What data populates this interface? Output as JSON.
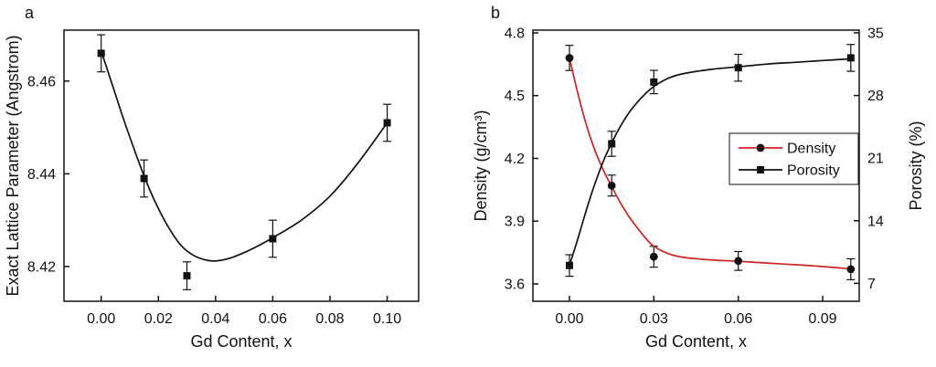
{
  "figure": {
    "background": "#ffffff",
    "ink_color": "#111111"
  },
  "chart_data": [
    {
      "type": "line",
      "panel_label": "a",
      "title": "",
      "xlabel": "Gd Content, x",
      "ylabel": "Exact Lattice Parameter (Angstrom)",
      "grid": false,
      "xlim": [
        -0.013,
        0.111
      ],
      "ylim": [
        8.4125,
        8.471
      ],
      "xticks": [
        0.0,
        0.02,
        0.04,
        0.06,
        0.08,
        0.1
      ],
      "xtick_labels": [
        "0.00",
        "0.02",
        "0.04",
        "0.06",
        "0.08",
        "0.10"
      ],
      "yticks": [
        8.42,
        8.44,
        8.46
      ],
      "ytick_labels": [
        "8.42",
        "8.44",
        "8.46"
      ],
      "series": [
        {
          "name": "Lattice parameter",
          "axis": "left",
          "marker": "square",
          "marker_color": "#111111",
          "line_color": "#111111",
          "x": [
            0.0,
            0.015,
            0.03,
            0.06,
            0.1
          ],
          "y": [
            8.466,
            8.439,
            8.418,
            8.426,
            8.451
          ],
          "yerr": [
            0.004,
            0.004,
            0.003,
            0.004,
            0.004
          ],
          "fit_curve": [
            [
              0.0,
              8.4665
            ],
            [
              0.004,
              8.459
            ],
            [
              0.008,
              8.4515
            ],
            [
              0.012,
              8.4445
            ],
            [
              0.016,
              8.438
            ],
            [
              0.02,
              8.4325
            ],
            [
              0.024,
              8.428
            ],
            [
              0.028,
              8.4245
            ],
            [
              0.032,
              8.4225
            ],
            [
              0.036,
              8.4215
            ],
            [
              0.04,
              8.4212
            ],
            [
              0.045,
              8.4218
            ],
            [
              0.05,
              8.423
            ],
            [
              0.055,
              8.4245
            ],
            [
              0.06,
              8.4262
            ],
            [
              0.07,
              8.43
            ],
            [
              0.08,
              8.4352
            ],
            [
              0.09,
              8.4425
            ],
            [
              0.1,
              8.451
            ]
          ]
        }
      ]
    },
    {
      "type": "line",
      "panel_label": "b",
      "title": "",
      "xlabel": "Gd Content, x",
      "ylabel": "Density (g/cm³)",
      "ylabel_right": "Porosity (%)",
      "grid": false,
      "xlim": [
        -0.013,
        0.103
      ],
      "ylim": [
        3.517,
        4.813
      ],
      "ylim_right": [
        5.0,
        35.3
      ],
      "xticks": [
        0.0,
        0.03,
        0.06,
        0.09
      ],
      "xtick_labels": [
        "0.00",
        "0.03",
        "0.06",
        "0.09"
      ],
      "yticks": [
        3.6,
        3.9,
        4.2,
        4.5,
        4.8
      ],
      "ytick_labels": [
        "3.6",
        "3.9",
        "4.2",
        "4.5",
        "4.8"
      ],
      "yticks_right": [
        7,
        14,
        21,
        28,
        35
      ],
      "ytick_labels_right": [
        "7",
        "14",
        "21",
        "28",
        "35"
      ],
      "legend": {
        "position": "middle-right",
        "entries": [
          "Density",
          "Porosity"
        ]
      },
      "series": [
        {
          "name": "Density",
          "axis": "left",
          "marker": "circle",
          "marker_color": "#111111",
          "line_color": "#d02420",
          "x": [
            0.0,
            0.015,
            0.03,
            0.06,
            0.1
          ],
          "y": [
            4.68,
            4.07,
            3.73,
            3.71,
            3.67
          ],
          "yerr": [
            0.06,
            0.05,
            0.05,
            0.045,
            0.05
          ],
          "fit_curve": [
            [
              0.0,
              4.68
            ],
            [
              0.003,
              4.51
            ],
            [
              0.006,
              4.36
            ],
            [
              0.009,
              4.24
            ],
            [
              0.012,
              4.145
            ],
            [
              0.015,
              4.065
            ],
            [
              0.018,
              3.99
            ],
            [
              0.021,
              3.925
            ],
            [
              0.024,
              3.87
            ],
            [
              0.027,
              3.82
            ],
            [
              0.03,
              3.78
            ],
            [
              0.035,
              3.745
            ],
            [
              0.04,
              3.728
            ],
            [
              0.05,
              3.715
            ],
            [
              0.06,
              3.708
            ],
            [
              0.07,
              3.7
            ],
            [
              0.08,
              3.692
            ],
            [
              0.09,
              3.683
            ],
            [
              0.1,
              3.672
            ]
          ]
        },
        {
          "name": "Porosity",
          "axis": "right",
          "marker": "square",
          "marker_color": "#111111",
          "line_color": "#111111",
          "x": [
            0.0,
            0.015,
            0.03,
            0.06,
            0.1
          ],
          "y": [
            9.0,
            22.6,
            29.5,
            31.1,
            32.2
          ],
          "yerr": [
            1.2,
            1.4,
            1.3,
            1.5,
            1.5
          ],
          "fit_curve": [
            [
              0.0,
              9.0
            ],
            [
              0.003,
              12.0
            ],
            [
              0.006,
              15.2
            ],
            [
              0.009,
              18.1
            ],
            [
              0.012,
              20.6
            ],
            [
              0.015,
              22.7
            ],
            [
              0.018,
              24.5
            ],
            [
              0.021,
              26.0
            ],
            [
              0.024,
              27.2
            ],
            [
              0.027,
              28.2
            ],
            [
              0.03,
              29.0
            ],
            [
              0.035,
              29.9
            ],
            [
              0.04,
              30.4
            ],
            [
              0.05,
              30.9
            ],
            [
              0.06,
              31.2
            ],
            [
              0.07,
              31.5
            ],
            [
              0.08,
              31.7
            ],
            [
              0.09,
              31.9
            ],
            [
              0.1,
              32.1
            ]
          ]
        }
      ]
    }
  ]
}
